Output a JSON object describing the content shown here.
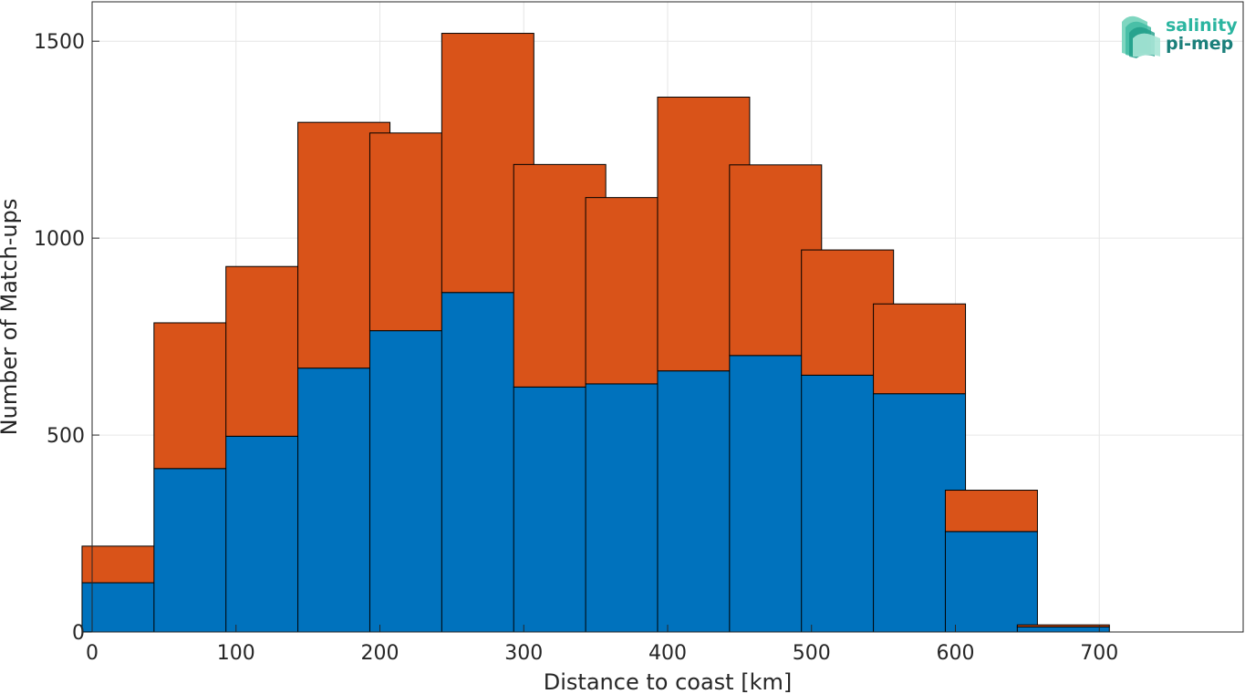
{
  "chart_data": {
    "type": "bar",
    "stacked": true,
    "x": [
      25,
      75,
      125,
      175,
      225,
      275,
      325,
      375,
      425,
      475,
      525,
      575,
      625,
      675,
      725
    ],
    "series": [
      {
        "values": [
          125,
          415,
          497,
          670,
          765,
          862,
          622,
          630,
          663,
          702,
          652,
          605,
          255,
          13,
          0
        ],
        "color": "#0072BD"
      },
      {
        "values": [
          93,
          370,
          431,
          624,
          502,
          658,
          565,
          473,
          695,
          484,
          318,
          228,
          105,
          5,
          0
        ],
        "color": "#D95319"
      }
    ],
    "xlabel": "Distance to coast [km]",
    "ylabel": "Number of Match-ups",
    "xlim": [
      0,
      800
    ],
    "ylim": [
      0,
      1600
    ],
    "xticks": [
      "0",
      "100",
      "200",
      "300",
      "400",
      "500",
      "600",
      "700"
    ],
    "yticks": [
      "0",
      "500",
      "1000",
      "1500"
    ],
    "grid": true
  },
  "logo": {
    "line1": "salinity",
    "line2": "pi-mep",
    "color1": "#2bb5a0",
    "color2": "#1a7f7a"
  }
}
